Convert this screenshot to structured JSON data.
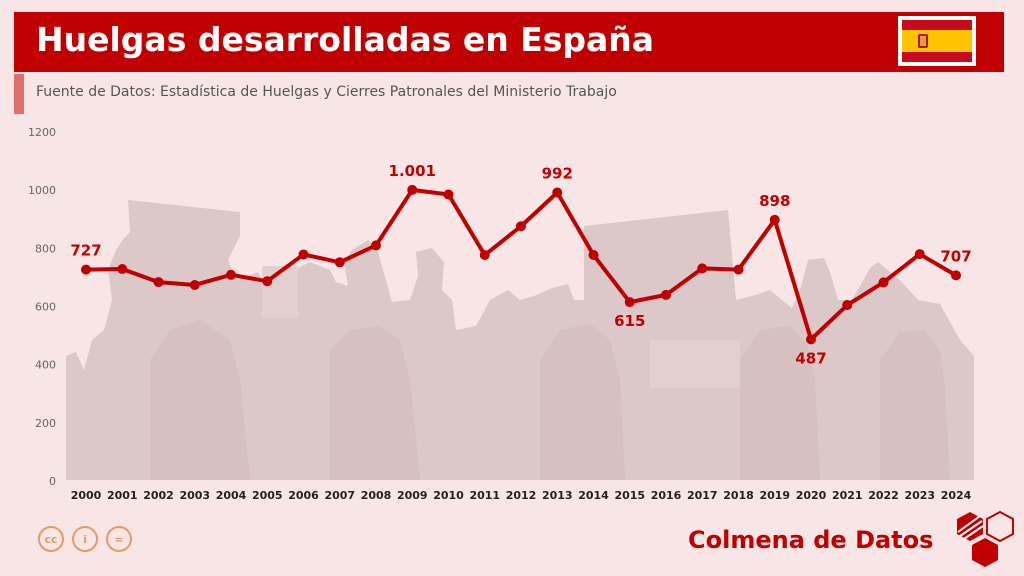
{
  "header": {
    "title": "Huelgas desarrolladas en España"
  },
  "subtitle": "Fuente de Datos: Estadística de Huelgas y Cierres Patronales del Ministerio Trabajo",
  "brand": "Colmena de Datos",
  "license_icons": {
    "cc": "cc",
    "by": "i",
    "nd": "="
  },
  "colors": {
    "accent": "#c00000",
    "background": "#f8e6e6",
    "silhouette": "#dcc8c8"
  },
  "chart_data": {
    "type": "line",
    "title": "",
    "xlabel": "",
    "ylabel": "",
    "ylim": [
      0,
      1200
    ],
    "yticks": [
      "0",
      "200",
      "400",
      "600",
      "800",
      "1000",
      "1200"
    ],
    "categories": [
      "2000",
      "2001",
      "2002",
      "2003",
      "2004",
      "2005",
      "2006",
      "2007",
      "2008",
      "2009",
      "2010",
      "2011",
      "2012",
      "2013",
      "2014",
      "2015",
      "2016",
      "2017",
      "2018",
      "2019",
      "2020",
      "2021",
      "2022",
      "2023",
      "2024"
    ],
    "values": [
      727,
      729,
      684,
      674,
      709,
      687,
      779,
      752,
      810,
      1001,
      985,
      777,
      876,
      992,
      777,
      615,
      640,
      731,
      727,
      898,
      487,
      605,
      683,
      780,
      707
    ],
    "data_labels": [
      {
        "index": 0,
        "text": "727",
        "pos": "above"
      },
      {
        "index": 9,
        "text": "1.001",
        "pos": "above"
      },
      {
        "index": 13,
        "text": "992",
        "pos": "above"
      },
      {
        "index": 15,
        "text": "615",
        "pos": "below"
      },
      {
        "index": 19,
        "text": "898",
        "pos": "above"
      },
      {
        "index": 20,
        "text": "487",
        "pos": "below"
      },
      {
        "index": 24,
        "text": "707",
        "pos": "above"
      }
    ],
    "grid": false,
    "legend": "none"
  }
}
